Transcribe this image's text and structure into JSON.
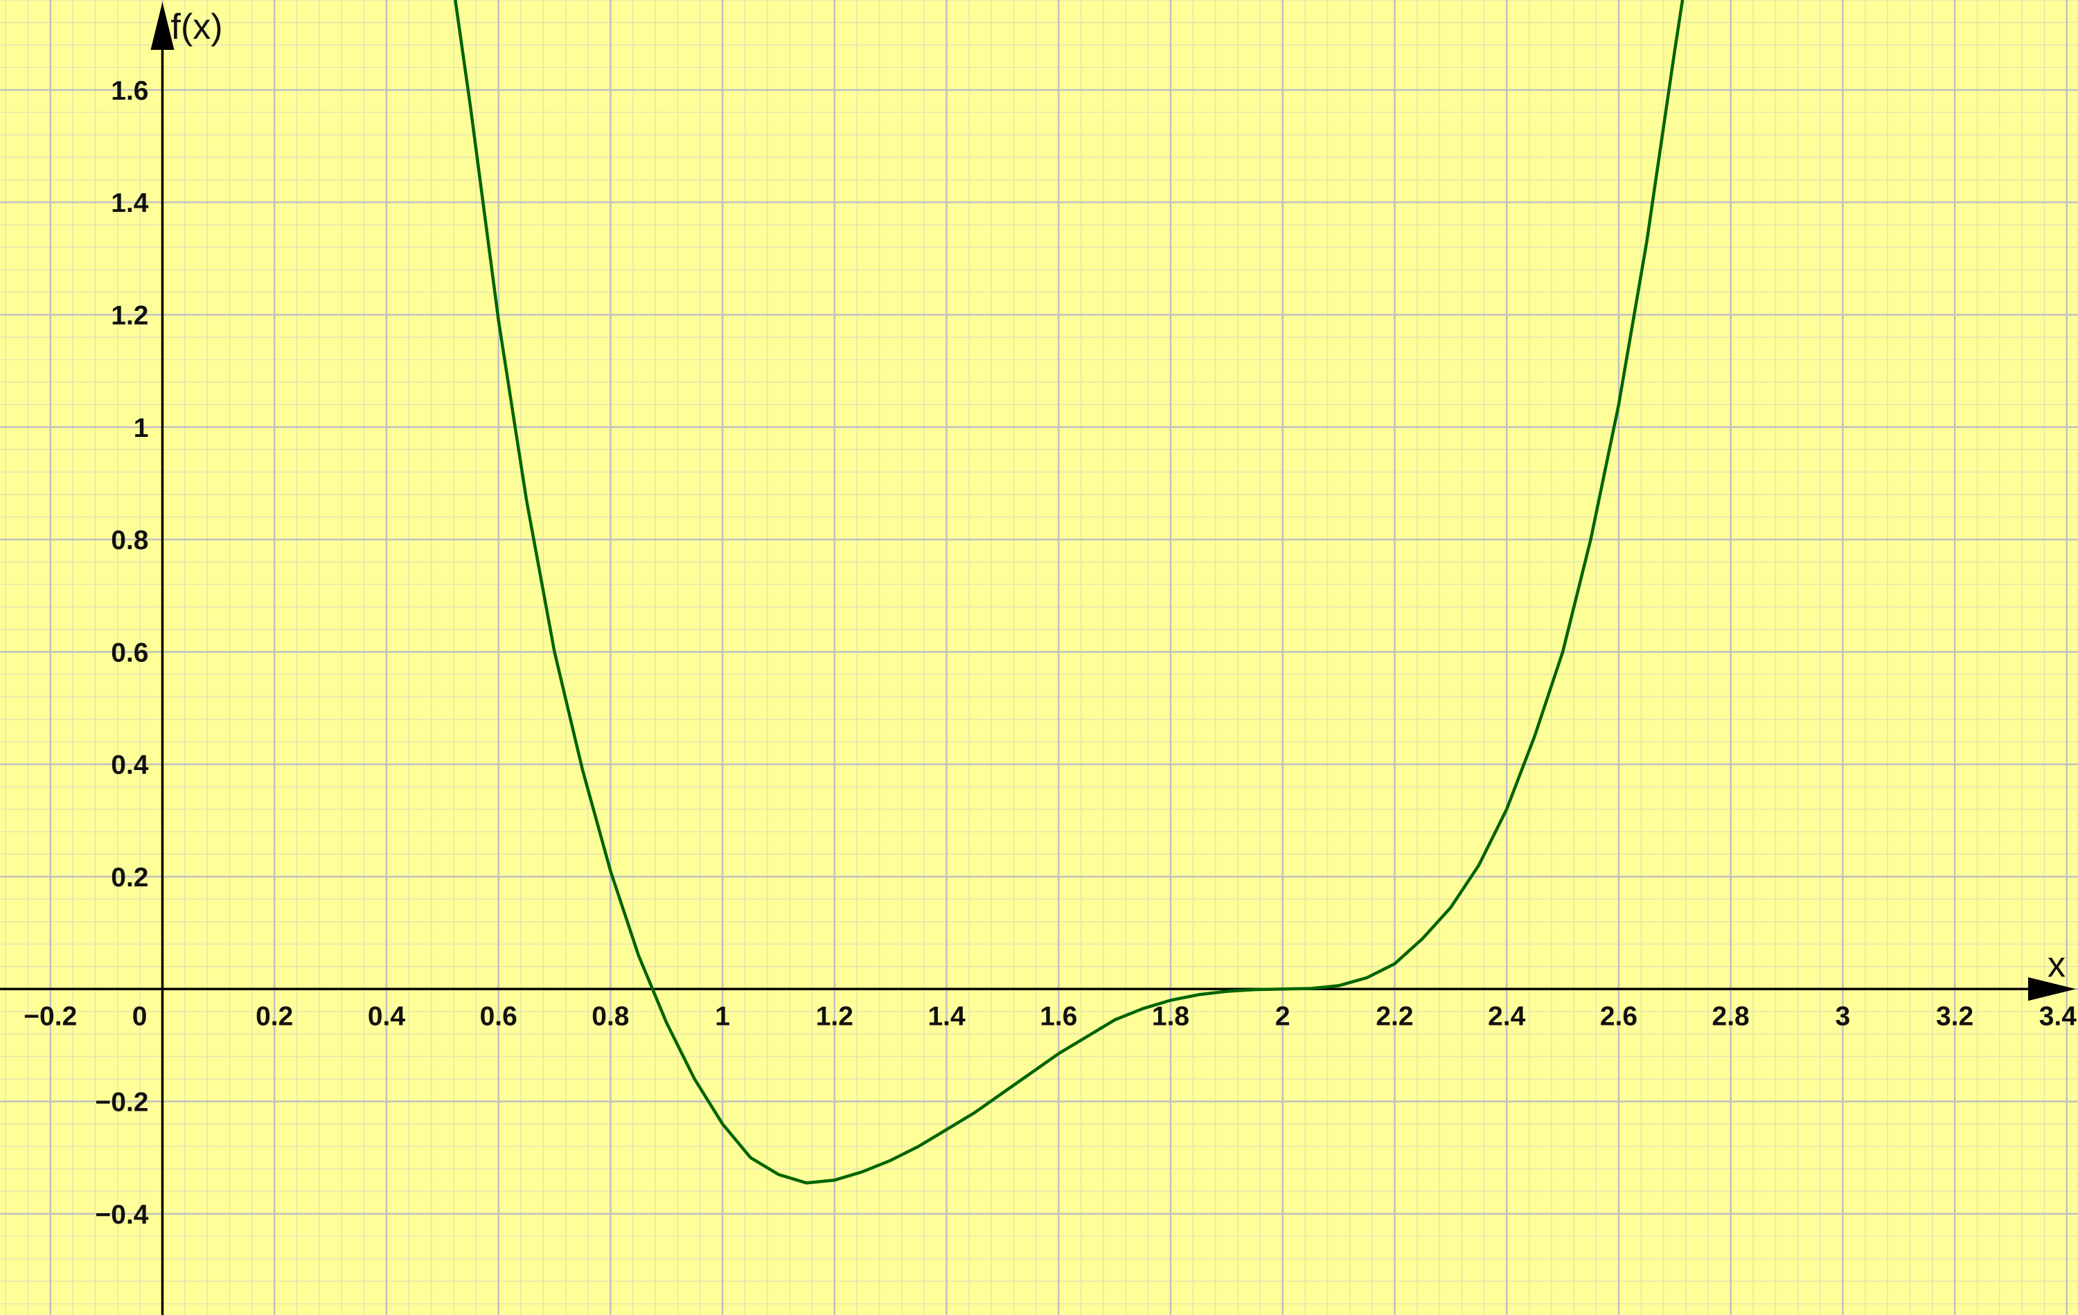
{
  "chart_data": {
    "type": "line",
    "title": "",
    "xlabel": "x",
    "ylabel": "f(x)",
    "xlim": [
      -0.29,
      3.42
    ],
    "ylim": [
      -0.58,
      1.76
    ],
    "grid": true,
    "x_ticks": [
      {
        "value": -0.2,
        "label": "−0.2"
      },
      {
        "value": 0,
        "label": "0"
      },
      {
        "value": 0.2,
        "label": "0.2"
      },
      {
        "value": 0.4,
        "label": "0.4"
      },
      {
        "value": 0.6,
        "label": "0.6"
      },
      {
        "value": 0.8,
        "label": "0.8"
      },
      {
        "value": 1,
        "label": "1"
      },
      {
        "value": 1.2,
        "label": "1.2"
      },
      {
        "value": 1.4,
        "label": "1.4"
      },
      {
        "value": 1.6,
        "label": "1.6"
      },
      {
        "value": 1.8,
        "label": "1.8"
      },
      {
        "value": 2,
        "label": "2"
      },
      {
        "value": 2.2,
        "label": "2.2"
      },
      {
        "value": 2.4,
        "label": "2.4"
      },
      {
        "value": 2.6,
        "label": "2.6"
      },
      {
        "value": 2.8,
        "label": "2.8"
      },
      {
        "value": 3,
        "label": "3"
      },
      {
        "value": 3.2,
        "label": "3.2"
      },
      {
        "value": 3.4,
        "label": "3.4"
      }
    ],
    "y_ticks": [
      {
        "value": -0.4,
        "label": "−0.4"
      },
      {
        "value": -0.2,
        "label": "−0.2"
      },
      {
        "value": 0.2,
        "label": "0.2"
      },
      {
        "value": 0.4,
        "label": "0.4"
      },
      {
        "value": 0.6,
        "label": "0.6"
      },
      {
        "value": 0.8,
        "label": "0.8"
      },
      {
        "value": 1,
        "label": "1"
      },
      {
        "value": 1.2,
        "label": "1.2"
      },
      {
        "value": 1.4,
        "label": "1.4"
      },
      {
        "value": 1.6,
        "label": "1.6"
      }
    ],
    "series": [
      {
        "color": "#006400",
        "x": [
          0.52,
          0.55,
          0.6,
          0.65,
          0.7,
          0.75,
          0.8,
          0.85,
          0.9,
          0.95,
          1.0,
          1.05,
          1.1,
          1.15,
          1.2,
          1.25,
          1.3,
          1.35,
          1.4,
          1.45,
          1.5,
          1.55,
          1.6,
          1.65,
          1.7,
          1.75,
          1.8,
          1.85,
          1.9,
          1.95,
          2.0,
          2.05,
          2.1,
          2.15,
          2.2,
          2.25,
          2.3,
          2.35,
          2.4,
          2.45,
          2.5,
          2.55,
          2.6,
          2.65,
          2.7,
          2.72
        ],
        "y": [
          1.78,
          1.57,
          1.19,
          0.87,
          0.6,
          0.39,
          0.21,
          0.06,
          -0.06,
          -0.16,
          -0.24,
          -0.3,
          -0.33,
          -0.345,
          -0.34,
          -0.325,
          -0.305,
          -0.28,
          -0.25,
          -0.22,
          -0.185,
          -0.15,
          -0.115,
          -0.085,
          -0.055,
          -0.035,
          -0.02,
          -0.01,
          -0.004,
          -0.001,
          0.0,
          0.001,
          0.006,
          0.02,
          0.045,
          0.09,
          0.145,
          0.22,
          0.32,
          0.45,
          0.6,
          0.8,
          1.04,
          1.33,
          1.67,
          1.8
        ]
      }
    ]
  }
}
